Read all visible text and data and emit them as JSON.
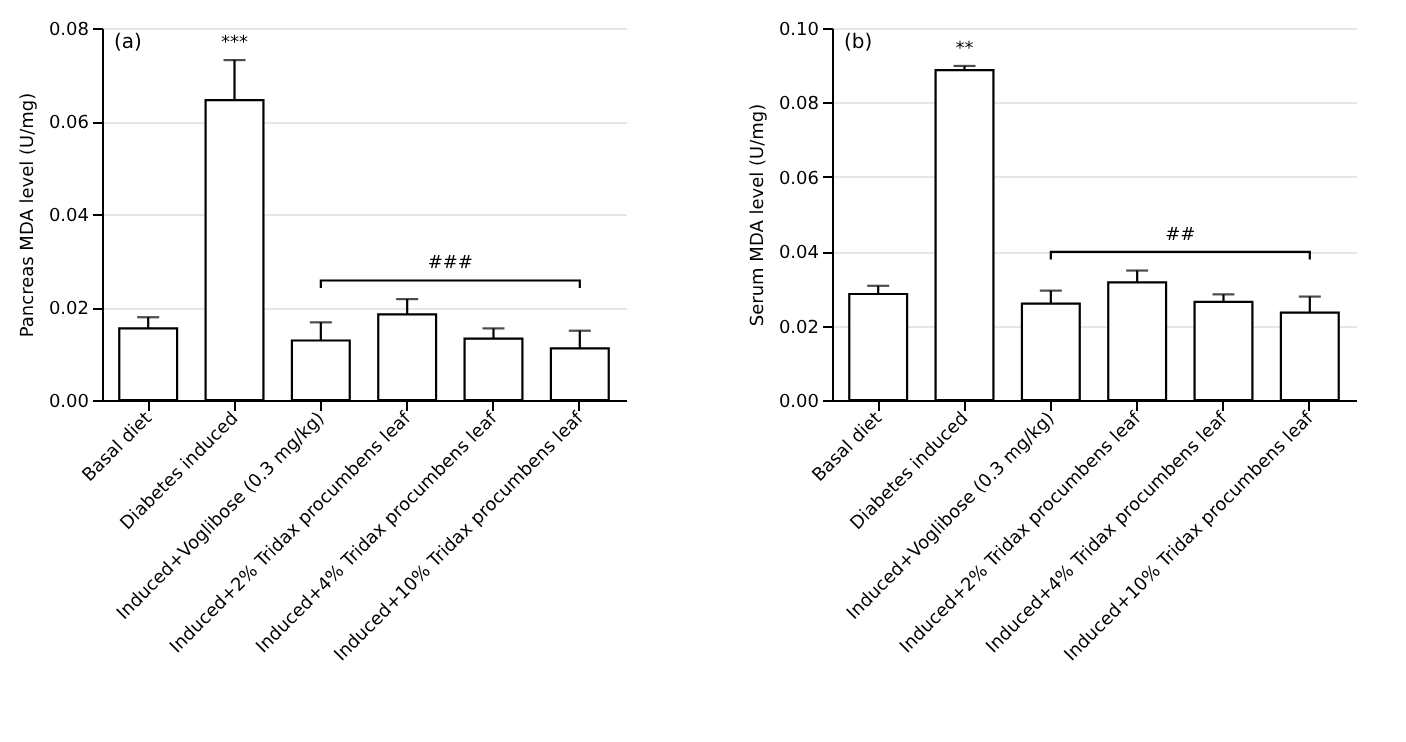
{
  "chart_data": [
    {
      "type": "bar",
      "ylabel": "Pancreas MDA level (U/mg)",
      "categories": [
        "Basal diet",
        "Diabetes induced",
        "Induced+Voglibose (0.3 mg/kg)",
        "Induced+2% Tridax procumbens leaf",
        "Induced+4% Tridax procumbens leaf",
        "Induced+10% Tridax procumbens leaf"
      ],
      "values": [
        0.0154,
        0.0645,
        0.0128,
        0.0184,
        0.0132,
        0.0111
      ],
      "errors": [
        [
          0.0154,
          0.0178
        ],
        [
          0.0645,
          0.0731
        ],
        [
          0.0128,
          0.0167
        ],
        [
          0.0184,
          0.0217
        ],
        [
          0.0132,
          0.0154
        ],
        [
          0.0111,
          0.0149
        ]
      ],
      "color": "#ffffff",
      "ylim": [
        0,
        0.08
      ],
      "yticks": [
        {
          "value": 0,
          "label": "0.00"
        },
        {
          "value": 0.02,
          "label": "0.02"
        },
        {
          "value": 0.04,
          "label": "0.04"
        },
        {
          "value": 0.06,
          "label": "0.06"
        },
        {
          "value": 0.08,
          "label": "0.08"
        }
      ],
      "grid": "y",
      "annotations": [
        "(a)",
        {
          "text": "***",
          "x": "Diabetes induced",
          "y": 0.0731
        },
        "###"
      ]
    },
    {
      "type": "bar",
      "ylabel": "Serum MDA level (U/mg)",
      "categories": [
        "Basal diet",
        "Diabetes induced",
        "Induced+Voglibose (0.3 mg/kg)",
        "Induced+2% Tridax procumbens leaf",
        "Induced+4% Tridax procumbens leaf",
        "Induced+10% Tridax procumbens leaf"
      ],
      "values": [
        0.0285,
        0.0887,
        0.0259,
        0.0316,
        0.0264,
        0.0235
      ],
      "errors": [
        [
          0.0285,
          0.0307
        ],
        [
          0.0887,
          0.0898
        ],
        [
          0.0259,
          0.0294
        ],
        [
          0.0316,
          0.0348
        ],
        [
          0.0264,
          0.0284
        ],
        [
          0.0235,
          0.0278
        ]
      ],
      "color": "#ffffff",
      "ylim": [
        0,
        0.1
      ],
      "yticks": [
        {
          "value": 0,
          "label": "0.00"
        },
        {
          "value": 0.02,
          "label": "0.02"
        },
        {
          "value": 0.04,
          "label": "0.04"
        },
        {
          "value": 0.06,
          "label": "0.06"
        },
        {
          "value": 0.08,
          "label": "0.08"
        },
        {
          "value": 0.1,
          "label": "0.10"
        }
      ],
      "grid": "y",
      "annotations": [
        "(b)",
        {
          "text": "**",
          "x": "Diabetes induced",
          "y": 0.0898
        },
        "##"
      ]
    }
  ]
}
